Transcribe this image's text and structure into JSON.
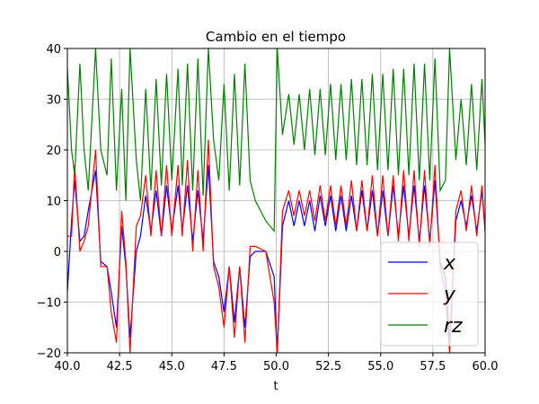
{
  "chart_data": {
    "type": "line",
    "title": "Cambio en el tiempo",
    "xlabel": "t",
    "x": [
      40,
      40.2,
      40.35,
      40.6,
      40.8,
      41.0,
      41.35,
      41.6,
      41.9,
      42.1,
      42.35,
      42.6,
      42.8,
      43.0,
      43.3,
      43.5,
      43.75,
      44.0,
      44.25,
      44.5,
      44.75,
      45.0,
      45.3,
      45.5,
      45.75,
      46.0,
      46.25,
      46.5,
      46.75,
      47.0,
      47.25,
      47.5,
      47.75,
      48.0,
      48.25,
      48.5,
      48.75,
      49.0,
      49.5,
      49.9,
      50.05,
      50.3,
      50.6,
      50.85,
      51.1,
      51.35,
      51.6,
      51.85,
      52.1,
      52.35,
      52.6,
      52.85,
      53.1,
      53.35,
      53.6,
      53.85,
      54.1,
      54.35,
      54.6,
      54.85,
      55.1,
      55.35,
      55.6,
      55.85,
      56.1,
      56.35,
      56.6,
      56.85,
      57.1,
      57.35,
      57.6,
      57.85,
      58.1,
      58.3,
      58.6,
      58.85,
      59.1,
      59.35,
      59.6,
      59.85,
      60
    ],
    "series": [
      {
        "name": "x",
        "color": "#0000ff",
        "values": [
          -8,
          6,
          14,
          2,
          3,
          8,
          16,
          -2,
          -3,
          -8,
          -15,
          5,
          -3,
          -17,
          0,
          3,
          11,
          4,
          12,
          3,
          13,
          4,
          13,
          4,
          13,
          2,
          12,
          2,
          17,
          -2,
          -5,
          -12,
          -3,
          -14,
          -3,
          -15,
          -1,
          0,
          0,
          -5,
          -20,
          5,
          10,
          5,
          10,
          5,
          10,
          4,
          11,
          5,
          11,
          4,
          11,
          4,
          11,
          4,
          12,
          4,
          12,
          3,
          12,
          3,
          13,
          3,
          13,
          3,
          13,
          2,
          13,
          2,
          14,
          -2,
          -5,
          -18,
          6,
          10,
          5,
          11,
          4,
          12,
          4
        ]
      },
      {
        "name": "y",
        "color": "#ff0000",
        "values": [
          3,
          3,
          17,
          0,
          2,
          5,
          20,
          -3,
          -3,
          -12,
          -18,
          8,
          -2,
          -20,
          5,
          7,
          15,
          3,
          16,
          3,
          17,
          3,
          17,
          3,
          18,
          0,
          16,
          0,
          22,
          -3,
          -7,
          -15,
          -3,
          -17,
          -3,
          -18,
          1,
          1,
          0,
          -10,
          -20,
          8,
          12,
          7,
          12,
          7,
          12,
          6,
          13,
          6,
          13,
          5,
          13,
          5,
          14,
          4,
          14,
          4,
          15,
          3,
          15,
          3,
          15,
          2,
          16,
          2,
          16,
          1,
          16,
          1,
          17,
          -3,
          -8,
          -20,
          8,
          12,
          4,
          13,
          3,
          13,
          4
        ]
      },
      {
        "name": "rz",
        "color": "#008000",
        "values": [
          36,
          20,
          15,
          37,
          20,
          12,
          40,
          20,
          15,
          38,
          12,
          32,
          10,
          40,
          18,
          10,
          32,
          12,
          34,
          13,
          35,
          14,
          36,
          13,
          37,
          12,
          38,
          11,
          40,
          22,
          14,
          33,
          12,
          35,
          13,
          37,
          14,
          10,
          6,
          4,
          40,
          23,
          31,
          21,
          31,
          20,
          32,
          19,
          32,
          19,
          33,
          18,
          33,
          18,
          34,
          17,
          34,
          17,
          35,
          16,
          35,
          16,
          36,
          15,
          36,
          15,
          37,
          14,
          37,
          14,
          38,
          12,
          14,
          40,
          18,
          30,
          17,
          33,
          16,
          34,
          21
        ]
      }
    ],
    "xlim": [
      40,
      60
    ],
    "ylim": [
      -20,
      40
    ],
    "xticks": [
      {
        "value": 40,
        "label": "40.0"
      },
      {
        "value": 42.5,
        "label": "42.5"
      },
      {
        "value": 45,
        "label": "45.0"
      },
      {
        "value": 47.5,
        "label": "47.5"
      },
      {
        "value": 50,
        "label": "50.0"
      },
      {
        "value": 52.5,
        "label": "52.5"
      },
      {
        "value": 55,
        "label": "55.0"
      },
      {
        "value": 57.5,
        "label": "57.5"
      },
      {
        "value": 60,
        "label": "60.0"
      }
    ],
    "yticks": [
      {
        "value": -20,
        "label": "−20"
      },
      {
        "value": -10,
        "label": "−10"
      },
      0,
      10,
      20,
      30,
      40
    ],
    "grid": true,
    "legend": "lower right"
  }
}
